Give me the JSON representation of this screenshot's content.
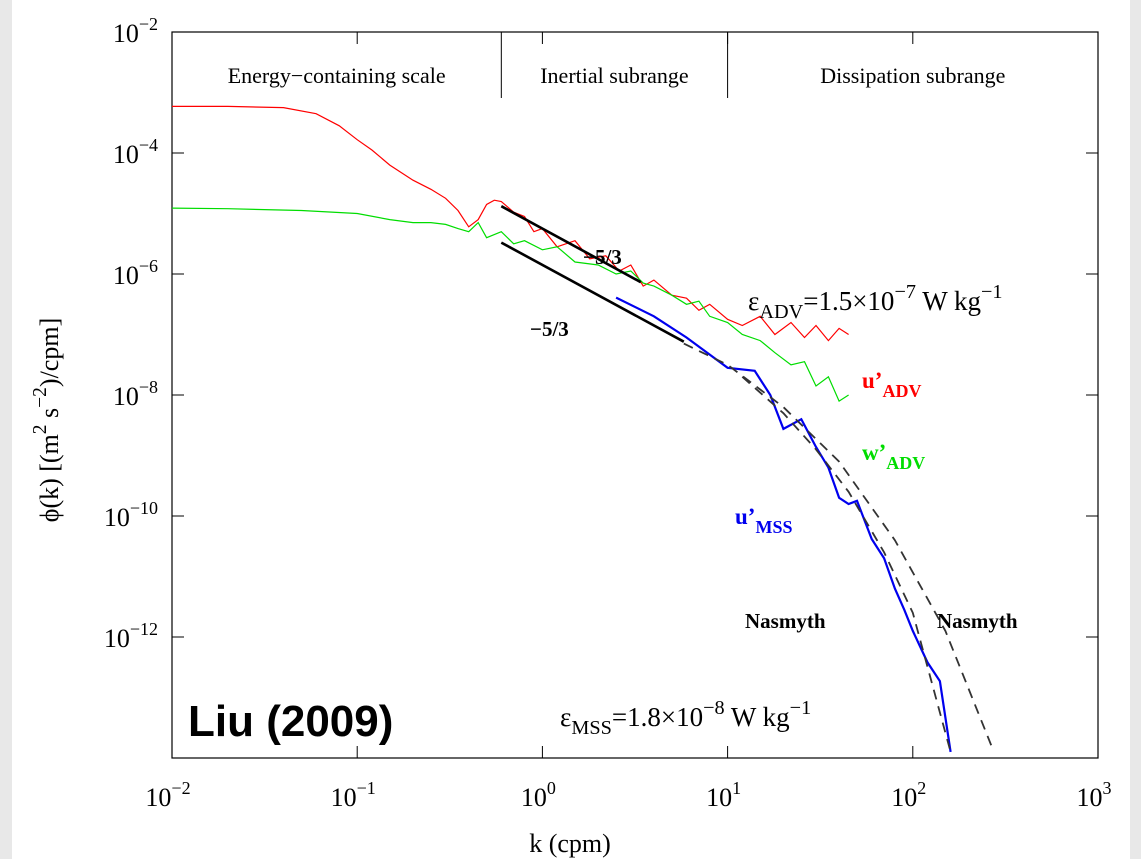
{
  "chart_data": {
    "type": "line",
    "log_x": true,
    "log_y": true,
    "xlim": [
      0.01,
      1000
    ],
    "ylim": [
      1e-14,
      0.01
    ],
    "xticks": [
      {
        "value": 0.01,
        "label": "10−2"
      },
      {
        "value": 0.1,
        "label": "10−1"
      },
      {
        "value": 1,
        "label": "100"
      },
      {
        "value": 10,
        "label": "101"
      },
      {
        "value": 100,
        "label": "102"
      },
      {
        "value": 1000,
        "label": "103"
      }
    ],
    "yticks": [
      {
        "value": 0.01,
        "label": "10−2"
      },
      {
        "value": 0.0001,
        "label": "10−4"
      },
      {
        "value": 1e-06,
        "label": "10−6"
      },
      {
        "value": 1e-08,
        "label": "10−8"
      },
      {
        "value": 1e-10,
        "label": "10−10"
      },
      {
        "value": 1e-12,
        "label": "10−12"
      }
    ],
    "xlabel": "k (cpm)",
    "ylabel": [
      "ϕ(k) [(m",
      "2",
      " s",
      "−2",
      ")/cpm]"
    ],
    "regions": [
      "Energy−containing scale",
      "Inertial subrange",
      "Dissipation subrange"
    ],
    "region_bounds": [
      0.6,
      10
    ],
    "series": [
      {
        "name": "u’",
        "name_sub": "ADV",
        "color": "#ff0000",
        "x": [
          0.01,
          0.02,
          0.04,
          0.06,
          0.08,
          0.1,
          0.12,
          0.15,
          0.2,
          0.25,
          0.3,
          0.35,
          0.4,
          0.45,
          0.5,
          0.55,
          0.6,
          0.7,
          0.8,
          0.9,
          1,
          1.2,
          1.5,
          1.8,
          2.2,
          2.6,
          3,
          3.5,
          4,
          5,
          6,
          7,
          8,
          10,
          12,
          15,
          18,
          22,
          26,
          30,
          35,
          40,
          45
        ],
        "values": [
          0.000589,
          0.000589,
          0.000562,
          0.000447,
          0.000282,
          0.000166,
          0.000112,
          6.31e-05,
          3.55e-05,
          2.51e-05,
          1.78e-05,
          1.12e-05,
          6.03e-06,
          7.94e-06,
          1.41e-05,
          1.66e-05,
          1.58e-05,
          1.05e-05,
          8.91e-06,
          5.01e-06,
          5.62e-06,
          2.82e-06,
          3.55e-06,
          1.78e-06,
          2e-06,
          1.12e-06,
          1.41e-06,
          6.31e-07,
          7.94e-07,
          4.47e-07,
          3.98e-07,
          2.51e-07,
          3.16e-07,
          1.78e-07,
          1.41e-07,
          2e-07,
          1e-07,
          1.58e-07,
          8.91e-08,
          1.41e-07,
          7.94e-08,
          1.26e-07,
          1e-07
        ]
      },
      {
        "name": "w’",
        "name_sub": "ADV",
        "color": "#00dd00",
        "x": [
          0.01,
          0.02,
          0.05,
          0.1,
          0.15,
          0.2,
          0.25,
          0.3,
          0.35,
          0.4,
          0.45,
          0.5,
          0.6,
          0.7,
          0.8,
          1,
          1.2,
          1.5,
          2,
          2.5,
          3,
          3.5,
          4,
          5,
          6,
          7,
          8,
          10,
          12,
          15,
          18,
          22,
          26,
          30,
          35,
          40,
          45
        ],
        "values": [
          1.23e-05,
          1.2e-05,
          1.12e-05,
          1e-05,
          7.94e-06,
          7.08e-06,
          7.08e-06,
          6.61e-06,
          5.62e-06,
          5.01e-06,
          7.08e-06,
          3.98e-06,
          5.01e-06,
          3.16e-06,
          3.55e-06,
          2.51e-06,
          2.82e-06,
          1.58e-06,
          1.41e-06,
          1e-06,
          1.12e-06,
          7.08e-07,
          6.31e-07,
          4.47e-07,
          3.16e-07,
          3.55e-07,
          2e-07,
          1.58e-07,
          1e-07,
          7.94e-08,
          5.01e-08,
          3.16e-08,
          3.55e-08,
          1.41e-08,
          2e-08,
          7.94e-09,
          1e-08
        ]
      },
      {
        "name": "u’",
        "name_sub": "MSS",
        "color": "#0000ee",
        "x": [
          2.5,
          4,
          6,
          10,
          14,
          17,
          20,
          25,
          30,
          35,
          40,
          45,
          50,
          60,
          70,
          80,
          90,
          100,
          120,
          140,
          160
        ],
        "values": [
          4.07e-07,
          2e-07,
          8.91e-08,
          2.82e-08,
          2.51e-08,
          1e-08,
          2.75e-09,
          3.98e-09,
          1.38e-09,
          6.31e-10,
          2e-10,
          1.58e-10,
          1.78e-10,
          4.17e-11,
          2e-11,
          6.31e-12,
          2.82e-12,
          1.26e-12,
          3.8e-13,
          1.86e-13,
          1.26e-14
        ]
      }
    ],
    "fits": [
      {
        "label": "−5/3",
        "color": "#000000",
        "dashed": false,
        "x": [
          0.6,
          3.4
        ],
        "values": [
          1.32e-05,
          7.33e-07
        ]
      },
      {
        "label": "−5/3",
        "color": "#000000",
        "dashed": false,
        "x": [
          0.6,
          5.8
        ],
        "values": [
          3.31e-06,
          7.59e-08
        ]
      },
      {
        "label": "Nasmyth",
        "color": "#333333",
        "dashed": true,
        "x": [
          12,
          20,
          30,
          45,
          70,
          100,
          160
        ],
        "values": [
          2e-08,
          5.01e-09,
          1.26e-09,
          2.51e-10,
          2.51e-11,
          2.51e-12,
          1.26e-14
        ]
      },
      {
        "label": "Nasmyth",
        "color": "#333333",
        "dashed": true,
        "x": [
          5.8,
          10,
          20,
          40,
          80,
          150,
          270
        ],
        "values": [
          7.08e-08,
          3.16e-08,
          6.31e-09,
          7.94e-10,
          3.98e-11,
          1.26e-12,
          1.41e-14
        ]
      }
    ],
    "annotations": [
      [
        "ε",
        "ADV",
        "=1.5×10",
        "−7",
        " W kg",
        "−1"
      ],
      [
        "ε",
        "MSS",
        "=1.8×10",
        "−8",
        " W kg",
        "−1"
      ]
    ],
    "source": "Liu (2009)"
  }
}
